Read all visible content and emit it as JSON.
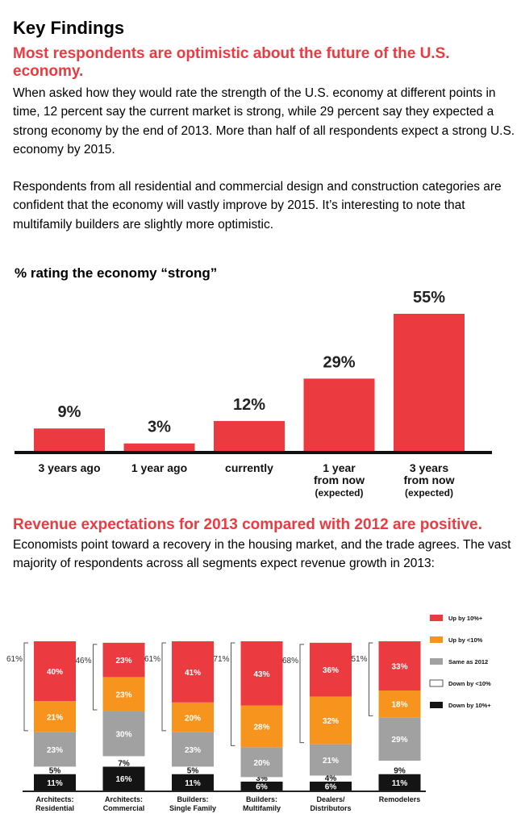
{
  "page": {
    "title": "Key Findings",
    "subhead1": "Most respondents are optimistic about the future of the U.S. economy.",
    "para1": "When asked how they would rate the strength of the U.S. economy at different points in time, 12 percent say the current market is strong, while 29 percent say they expected a strong economy by the end of 2013. More than half of all respondents expect a strong U.S. economy by 2015.",
    "para2": "Respondents from all residential and commercial design and construction categories are confident that the economy will vastly improve by 2015. It’s interesting to note that multifamily builders are slightly more optimistic.",
    "subhead2": "Revenue expectations for 2013 compared with 2012 are positive.",
    "para3": "Economists point toward a recovery in the housing market, and the trade agrees. The vast majority of respondents across all segments expect revenue growth in 2013:"
  },
  "colors": {
    "red": "#ec3b40",
    "orange": "#f7941d",
    "gray": "#a1a1a1",
    "white": "#ffffff",
    "black": "#141414"
  },
  "chart_data": [
    {
      "type": "bar",
      "title": "% rating the economy “strong”",
      "categories": [
        [
          "3 years ago"
        ],
        [
          "1 year ago"
        ],
        [
          "currently"
        ],
        [
          "1 year",
          "from now",
          "(expected)"
        ],
        [
          "3 years",
          "from now",
          "(expected)"
        ]
      ],
      "values": [
        9,
        3,
        12,
        29,
        55
      ],
      "value_labels": [
        "9%",
        "3%",
        "12%",
        "29%",
        "55%"
      ],
      "ylim": [
        0,
        55
      ],
      "grid": false,
      "bar_color": "#ec3b40"
    },
    {
      "type": "bar",
      "stacked": true,
      "categories": [
        [
          "Architects:",
          "Residential"
        ],
        [
          "Architects:",
          "Commercial"
        ],
        [
          "Builders:",
          "Single Family"
        ],
        [
          "Builders:",
          "Multifamily"
        ],
        [
          "Dealers/",
          "Distributors"
        ],
        [
          "Remodelers"
        ]
      ],
      "series": [
        {
          "name": "Up by 10%+",
          "color": "#ec3b40",
          "values": [
            40,
            23,
            41,
            43,
            36,
            33
          ]
        },
        {
          "name": "Up by <10%",
          "color": "#f7941d",
          "values": [
            21,
            23,
            20,
            28,
            32,
            18
          ]
        },
        {
          "name": "Same as 2012",
          "color": "#a1a1a1",
          "values": [
            23,
            30,
            23,
            20,
            21,
            29
          ]
        },
        {
          "name": "Down by <10%",
          "color": "#ffffff",
          "values": [
            5,
            7,
            5,
            3,
            4,
            9
          ]
        },
        {
          "name": "Down by 10%+",
          "color": "#141414",
          "values": [
            11,
            16,
            11,
            6,
            6,
            11
          ]
        }
      ],
      "up_totals": [
        "61%",
        "46%",
        "61%",
        "71%",
        "68%",
        "51%"
      ],
      "legend_position": "right",
      "grid": false
    }
  ]
}
